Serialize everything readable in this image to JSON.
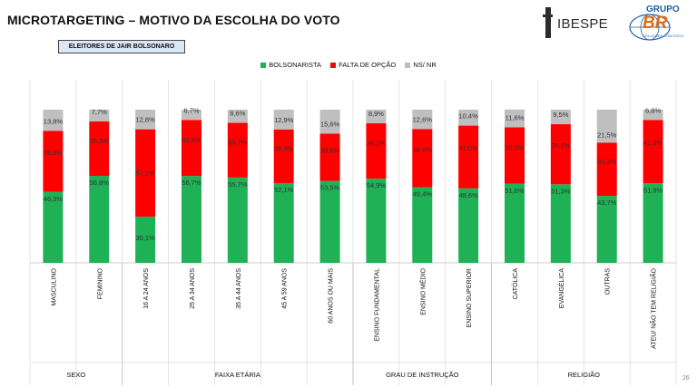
{
  "header": {
    "title": "MICROTARGETING – MOTIVO DA ESCOLHA DO VOTO",
    "subtitle": "ELEITORES DE JAIR BOLSONARO",
    "logo1": "IBESPE",
    "logo2_top": "GRUPO",
    "logo2_main": "BR",
    "logo2_sub": "SOLUÇÕES COM FOCO"
  },
  "page_number": "26",
  "colors": {
    "bolsonarista": "#1fb155",
    "falta": "#ff0000",
    "nsnr": "#bfbfbf"
  },
  "chart_data": {
    "type": "bar",
    "stacked": true,
    "percent": true,
    "title": "MICROTARGETING – MOTIVO DA ESCOLHA DO VOTO",
    "categories": [
      "MASCULINO",
      "FEMININO",
      "16 A 24 ANOS",
      "25 A 34 ANOS",
      "35 A 44 ANOS",
      "45 A 59 ANOS",
      "60 ANOS OU MAIS",
      "ENSINO FUNDAMENTAL",
      "ENSINO MÉDIO",
      "ENSINO SUPERIOR",
      "CATÓLICA",
      "EVANGÉLICA",
      "OUTRAS",
      "ATEU/ NÃO TEM RELIGIÃO"
    ],
    "series": [
      {
        "name": "BOLSONARISTA",
        "values": [
          46.3,
          56.8,
          30.1,
          56.7,
          55.7,
          52.1,
          53.5,
          54.9,
          49.4,
          48.6,
          51.6,
          51.3,
          43.7,
          51.9
        ],
        "labels": [
          "46,3%",
          "56,8%",
          "30,1%",
          "56,7%",
          "55,7%",
          "52,1%",
          "53,5%",
          "54,9%",
          "49,4%",
          "48,6%",
          "51,6%",
          "51,3%",
          "43,7%",
          "51,9%"
        ]
      },
      {
        "name": "FALTA DE OPÇÃO",
        "values": [
          39.9,
          35.5,
          57.1,
          36.6,
          35.7,
          35.0,
          30.9,
          36.2,
          38.0,
          41.0,
          36.9,
          39.2,
          34.8,
          41.3
        ],
        "labels": [
          "39,9%",
          "35,5%",
          "57,1%",
          "36,6%",
          "35,7%",
          "35,0%",
          "30,9%",
          "36,2%",
          "38,0%",
          "41,0%",
          "36,9%",
          "39,2%",
          "34,8%",
          "41,3%"
        ]
      },
      {
        "name": "NS/ NR",
        "values": [
          13.8,
          7.7,
          12.8,
          6.7,
          8.6,
          12.9,
          15.6,
          8.9,
          12.6,
          10.4,
          11.6,
          9.5,
          21.5,
          6.8
        ],
        "labels": [
          "13,8%",
          "7,7%",
          "12,8%",
          "6,7%",
          "8,6%",
          "12,9%",
          "15,6%",
          "8,9%",
          "12,6%",
          "10,4%",
          "11,6%",
          "9,5%",
          "21,5%",
          "6,8%"
        ]
      }
    ],
    "groups": [
      {
        "name": "SEXO",
        "categories": [
          0,
          1
        ]
      },
      {
        "name": "FAIXA ETÁRIA",
        "categories": [
          2,
          3,
          4,
          5,
          6
        ]
      },
      {
        "name": "GRAU DE INSTRUÇÃO",
        "categories": [
          7,
          8,
          9
        ]
      },
      {
        "name": "RELIGIÃO",
        "categories": [
          10,
          11,
          12,
          13
        ]
      }
    ],
    "ylim": [
      0,
      100
    ],
    "legend": "top-center"
  }
}
